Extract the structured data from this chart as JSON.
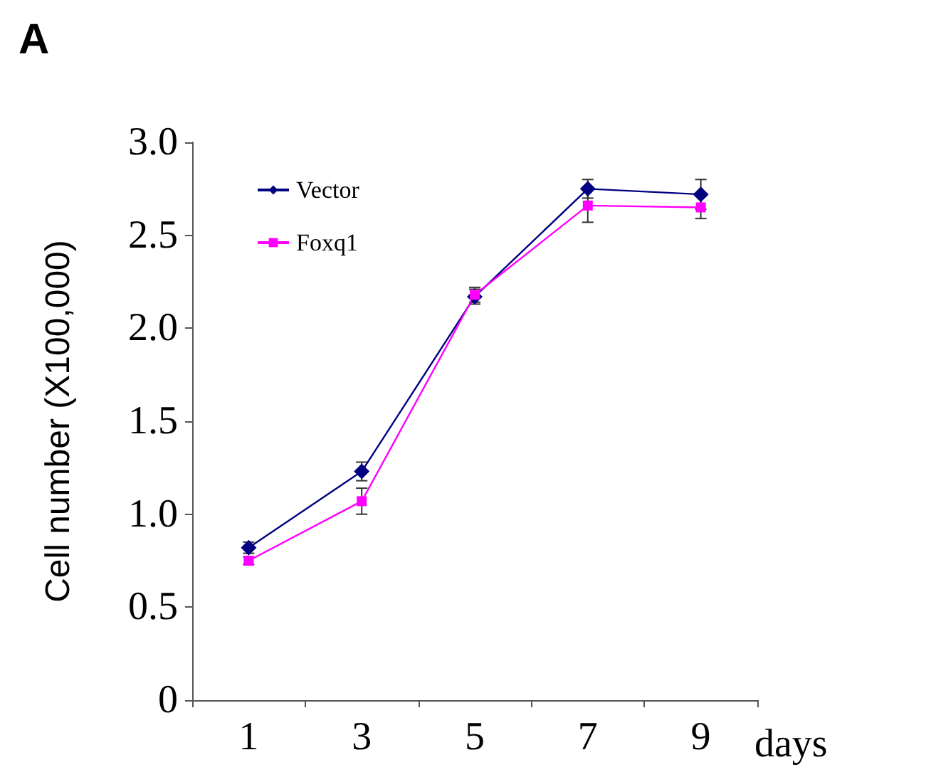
{
  "chart_data": {
    "type": "line",
    "title": "A",
    "xlabel": "days",
    "ylabel": "Cell number (X100,000)",
    "categories": [
      "1",
      "3",
      "5",
      "7",
      "9"
    ],
    "series": [
      {
        "name": "Vector",
        "color": "#000080",
        "marker": "diamond",
        "values": [
          0.82,
          1.23,
          2.17,
          2.75,
          2.72
        ],
        "errors": [
          0.03,
          0.05,
          0.04,
          0.05,
          0.08
        ]
      },
      {
        "name": "Foxq1",
        "color": "#ff00ff",
        "marker": "square",
        "values": [
          0.75,
          1.07,
          2.18,
          2.66,
          2.65
        ],
        "errors": [
          0.02,
          0.07,
          0.04,
          0.09,
          0.06
        ]
      }
    ],
    "ylim": [
      0,
      3
    ],
    "yticks": [
      0,
      {
        "value": 0.5,
        "label": "0.5"
      },
      {
        "value": 1,
        "label": "1.0"
      },
      1.5,
      {
        "value": 2,
        "label": "2.0"
      },
      2.5,
      {
        "value": 3,
        "label": "3.0"
      }
    ],
    "grid": false,
    "legend": "top left"
  }
}
